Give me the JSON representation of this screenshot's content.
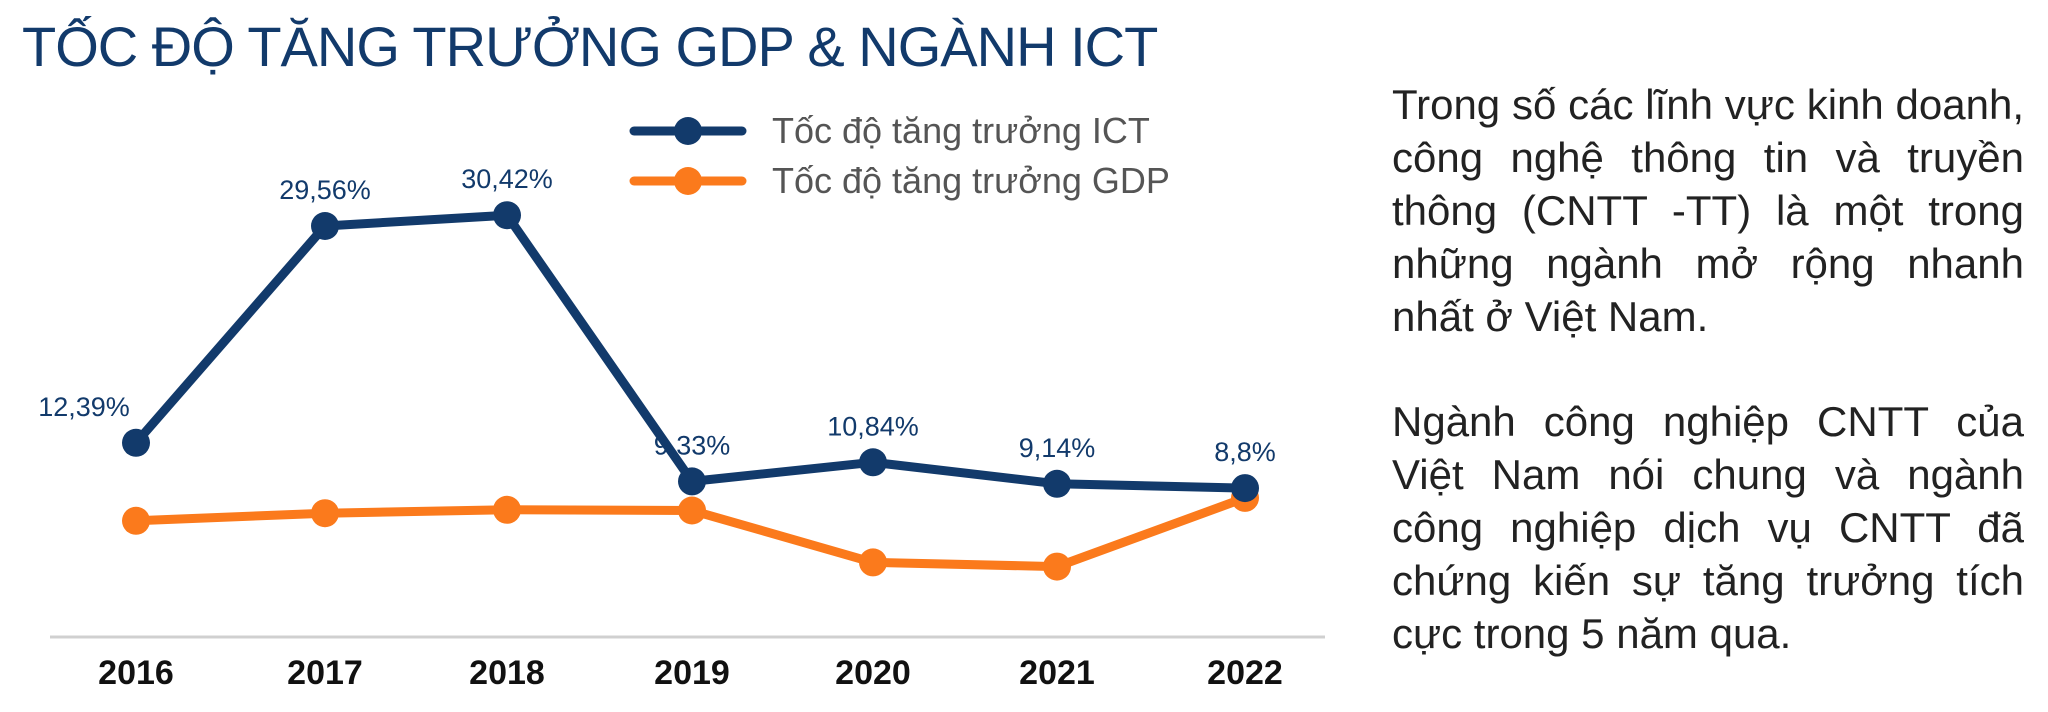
{
  "title": "TỐC ĐỘ TĂNG TRƯỞNG GDP & NGÀNH ICT",
  "paragraphs": [
    "Trong số các lĩnh vực kinh doanh, công nghệ thông tin và truyền thông (CNTT -TT) là một trong những ngành mở rộng nhanh nhất ở Việt Nam.",
    "Ngành công nghiệp CNTT của Việt Nam nói chung và ngành công nghiệp dịch vụ CNTT đã chứng kiến sự tăng trưởng tích cực trong 5 năm qua."
  ],
  "colors": {
    "ict": "#123a6b",
    "gdp": "#fb7a1c",
    "title": "#123a6b",
    "axis": "#d0d0d0"
  },
  "chart_data": {
    "type": "line",
    "title": "TỐC ĐỘ TĂNG TRƯỞNG GDP & NGÀNH ICT",
    "categories": [
      "2016",
      "2017",
      "2018",
      "2019",
      "2020",
      "2021",
      "2022"
    ],
    "ylim": [
      -3,
      34
    ],
    "grid": false,
    "legend": "top",
    "series": [
      {
        "name": "Tốc độ tăng trưởng ICT",
        "color": "#123a6b",
        "values": [
          12.39,
          29.56,
          30.42,
          9.33,
          10.84,
          9.14,
          8.8
        ],
        "labels": [
          "12,39%",
          "29,56%",
          "30,42%",
          "9,33%",
          "10,84%",
          "9,14%",
          "8,8%"
        ]
      },
      {
        "name": "Tốc độ tăng trưởng GDP",
        "color": "#fb7a1c",
        "values": [
          6.21,
          6.81,
          7.08,
          7.02,
          2.91,
          2.58,
          8.02
        ],
        "labels": []
      }
    ]
  }
}
